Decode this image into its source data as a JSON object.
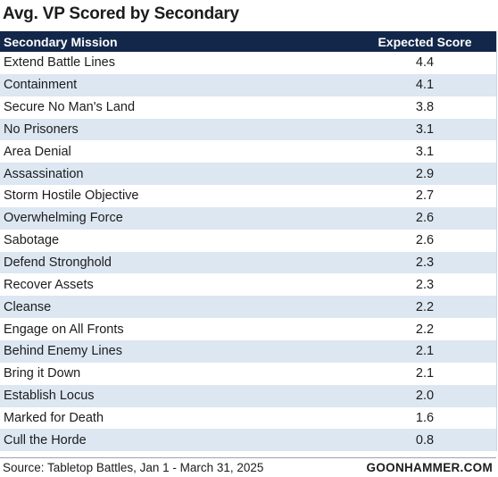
{
  "title": "Avg. VP Scored by Secondary",
  "table": {
    "columns": [
      "Secondary Mission",
      "Expected Score"
    ]
  },
  "colors": {
    "header_bg": "#12274a",
    "row_alt_bg": "#dde7f2",
    "row_bg": "#ffffff"
  },
  "chart_data": {
    "type": "table",
    "title": "Avg. VP Scored by Secondary",
    "columns": [
      "Secondary Mission",
      "Expected Score"
    ],
    "rows": [
      {
        "mission": "Extend Battle Lines",
        "score": "4.4"
      },
      {
        "mission": "Containment",
        "score": "4.1"
      },
      {
        "mission": "Secure No Man's Land",
        "score": "3.8"
      },
      {
        "mission": "No Prisoners",
        "score": "3.1"
      },
      {
        "mission": "Area Denial",
        "score": "3.1"
      },
      {
        "mission": "Assassination",
        "score": "2.9"
      },
      {
        "mission": "Storm Hostile Objective",
        "score": "2.7"
      },
      {
        "mission": "Overwhelming Force",
        "score": "2.6"
      },
      {
        "mission": "Sabotage",
        "score": "2.6"
      },
      {
        "mission": "Defend Stronghold",
        "score": "2.3"
      },
      {
        "mission": "Recover Assets",
        "score": "2.3"
      },
      {
        "mission": "Cleanse",
        "score": "2.2"
      },
      {
        "mission": "Engage on All Fronts",
        "score": "2.2"
      },
      {
        "mission": "Behind Enemy Lines",
        "score": "2.1"
      },
      {
        "mission": "Bring it Down",
        "score": "2.1"
      },
      {
        "mission": "Establish Locus",
        "score": "2.0"
      },
      {
        "mission": "Marked for Death",
        "score": "1.6"
      },
      {
        "mission": "Cull the Horde",
        "score": "0.8"
      }
    ]
  },
  "footer": {
    "source": "Source: Tabletop Battles, Jan 1 - March 31, 2025",
    "brand": "GOONHAMMER.COM"
  }
}
